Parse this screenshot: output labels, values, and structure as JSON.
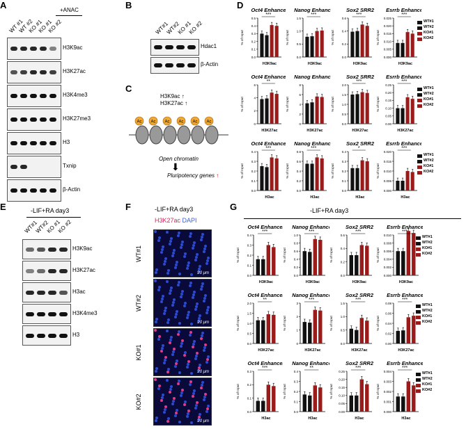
{
  "panels": {
    "A": {
      "label": "A",
      "anac": "+ANAC",
      "lanes": [
        "WT #1",
        "WT #2",
        "KO #1",
        "KO #1",
        "KO #2"
      ],
      "bands": [
        "H3K9ac",
        "H3K27ac",
        "H3K4me3",
        "H3K27me3",
        "H3",
        "Txnip",
        "β-Actin"
      ]
    },
    "B": {
      "label": "B",
      "lanes": [
        "WT#1",
        "WT#2",
        "KO #1",
        "KO #2"
      ],
      "bands": [
        "Hdac1",
        "β-Actin"
      ]
    },
    "C": {
      "label": "C",
      "mark1": "H3K9ac",
      "mark2": "H3K27ac",
      "open": "Open chromatin",
      "pluri": "Pluripotency genes",
      "ac": "Ac"
    },
    "D": {
      "label": "D"
    },
    "E": {
      "label": "E",
      "title": "-LIF+RA day3",
      "lanes": [
        "WT#1",
        "WT#2",
        "KO #1",
        "KO #2"
      ],
      "bands": [
        "H3K9ac",
        "H3K27ac",
        "H3ac",
        "H3K4me3",
        "H3"
      ]
    },
    "F": {
      "label": "F",
      "title": "-LIF+RA day3",
      "stain1": "H3K27ac",
      "stain2": "DAPI",
      "rows": [
        "WT#1",
        "WT#2",
        "KO#1",
        "KO#2"
      ],
      "scale": "20 μm"
    },
    "G": {
      "label": "G",
      "title": "-LIF+RA day3"
    }
  },
  "legend_D": [
    "WT#1",
    "WT#2",
    "KO#1",
    "KO#2"
  ],
  "legend_G": [
    "WT#1",
    "WT#2",
    "KO#1",
    "KO#2"
  ],
  "colors": {
    "black": "#111111",
    "red": "#9b1b1b"
  },
  "chart_data": [
    {
      "panel": "D",
      "type": "bar",
      "title": "Oct4 Enhancer",
      "xlabel": "H3K9ac",
      "ylabel": "% of Input",
      "categories": [
        "WT#1",
        "WT#2",
        "KO#1",
        "KO#2"
      ],
      "values": [
        0.3,
        0.28,
        0.41,
        0.4
      ],
      "ylim": [
        0,
        0.5
      ],
      "yticks": [
        "0.0",
        "0.1",
        "0.2",
        "0.3",
        "0.4",
        "0.5"
      ],
      "sig": "***"
    },
    {
      "panel": "D",
      "type": "bar",
      "title": "Nanog Enhancer",
      "xlabel": "H3K9ac",
      "ylabel": "% of Input",
      "categories": [
        "WT#1",
        "WT#2",
        "KO#1",
        "KO#2"
      ],
      "values": [
        0.78,
        0.8,
        1.0,
        1.02
      ],
      "ylim": [
        0,
        1.5
      ],
      "yticks": [
        "0.0",
        "0.5",
        "1.0",
        "1.5"
      ],
      "sig": "***"
    },
    {
      "panel": "D",
      "type": "bar",
      "title": "Sox2 SRR2",
      "xlabel": "H3K9ac",
      "ylabel": "% of Input",
      "categories": [
        "WT#1",
        "WT#2",
        "KO#1",
        "KO#2"
      ],
      "values": [
        0.39,
        0.4,
        0.5,
        0.48
      ],
      "ylim": [
        0,
        0.6
      ],
      "yticks": [
        "0.0",
        "0.2",
        "0.4",
        "0.6"
      ],
      "sig": "***"
    },
    {
      "panel": "D",
      "type": "bar",
      "title": "Esrrb Enhancer",
      "xlabel": "H3K9ac",
      "ylabel": "% of Input",
      "categories": [
        "WT#1",
        "WT#2",
        "KO#1",
        "KO#2"
      ],
      "values": [
        0.009,
        0.009,
        0.016,
        0.015
      ],
      "ylim": [
        0,
        0.025
      ],
      "yticks": [
        "0.000",
        "0.005",
        "0.010",
        "0.015",
        "0.020",
        "0.025"
      ],
      "sig": "***"
    },
    {
      "panel": "D",
      "type": "bar",
      "title": "Oct4 Enhancer",
      "xlabel": "H3K27ac",
      "ylabel": "% of Input",
      "categories": [
        "WT#1",
        "WT#2",
        "KO#1",
        "KO#2"
      ],
      "values": [
        3.8,
        3.9,
        4.8,
        4.6
      ],
      "ylim": [
        0,
        6
      ],
      "yticks": [
        "0",
        "2",
        "4",
        "6"
      ],
      "sig": "**"
    },
    {
      "panel": "D",
      "type": "bar",
      "title": "Nanog Enhancer",
      "xlabel": "H3K27ac",
      "ylabel": "% of Input",
      "categories": [
        "WT#1",
        "WT#2",
        "KO#1",
        "KO#2"
      ],
      "values": [
        4.2,
        4.4,
        5.6,
        5.5
      ],
      "ylim": [
        0,
        8
      ],
      "yticks": [
        "0",
        "2",
        "4",
        "6",
        "8"
      ],
      "sig": ""
    },
    {
      "panel": "D",
      "type": "bar",
      "title": "Sox2 SRR2",
      "xlabel": "H3K27ac",
      "ylabel": "% of Input",
      "categories": [
        "WT#1",
        "WT#2",
        "KO#1",
        "KO#2"
      ],
      "values": [
        1.5,
        1.52,
        1.62,
        1.58
      ],
      "ylim": [
        0,
        2
      ],
      "yticks": [
        "0.0",
        "0.5",
        "1.0",
        "1.5",
        "2.0"
      ],
      "sig": "***"
    },
    {
      "panel": "D",
      "type": "bar",
      "title": "Esrrb Enhancer",
      "xlabel": "H3K27ac",
      "ylabel": "% of Input",
      "categories": [
        "WT#1",
        "WT#2",
        "KO#1",
        "KO#2"
      ],
      "values": [
        0.1,
        0.1,
        0.17,
        0.16
      ],
      "ylim": [
        0,
        0.25
      ],
      "yticks": [
        "0.00",
        "0.05",
        "0.10",
        "0.15",
        "0.20",
        "0.25"
      ],
      "sig": "***"
    },
    {
      "panel": "D",
      "type": "bar",
      "title": "Oct4 Enhancer",
      "xlabel": "H3ac",
      "ylabel": "% of Input",
      "categories": [
        "WT#1",
        "WT#2",
        "KO#1",
        "KO#2"
      ],
      "values": [
        0.25,
        0.24,
        0.34,
        0.33
      ],
      "ylim": [
        0,
        0.4
      ],
      "yticks": [
        "0.0",
        "0.1",
        "0.2",
        "0.3",
        "0.4"
      ],
      "sig": "***"
    },
    {
      "panel": "D",
      "type": "bar",
      "title": "Nanog Enhancer",
      "xlabel": "H3ac",
      "ylabel": "% of Input",
      "categories": [
        "WT#1",
        "WT#2",
        "KO#1",
        "KO#2"
      ],
      "values": [
        0.55,
        0.55,
        0.68,
        0.66
      ],
      "ylim": [
        0,
        0.8
      ],
      "yticks": [
        "0.0",
        "0.2",
        "0.4",
        "0.6",
        "0.8"
      ],
      "sig": "***"
    },
    {
      "panel": "D",
      "type": "bar",
      "title": "Sox2 SRR2",
      "xlabel": "H3ac",
      "ylabel": "% of Input",
      "categories": [
        "WT#1",
        "WT#2",
        "KO#1",
        "KO#2"
      ],
      "values": [
        0.23,
        0.23,
        0.31,
        0.3
      ],
      "ylim": [
        0,
        0.4
      ],
      "yticks": [
        "0.0",
        "0.1",
        "0.2",
        "0.3",
        "0.4"
      ],
      "sig": "*"
    },
    {
      "panel": "D",
      "type": "bar",
      "title": "Esrrb Enhancer",
      "xlabel": "H3ac",
      "ylabel": "% of Input",
      "categories": [
        "WT#1",
        "WT#2",
        "KO#1",
        "KO#2"
      ],
      "values": [
        0.005,
        0.005,
        0.01,
        0.0095
      ],
      "ylim": [
        0,
        0.02
      ],
      "yticks": [
        "0.000",
        "0.005",
        "0.010",
        "0.015",
        "0.020"
      ],
      "sig": "***"
    },
    {
      "panel": "G",
      "type": "bar",
      "title": "Oct4 Enhancer",
      "xlabel": "H3K9ac",
      "ylabel": "% of Input",
      "categories": [
        "WT#1",
        "WT#2",
        "KO#1",
        "KO#2"
      ],
      "values": [
        0.16,
        0.16,
        0.3,
        0.28
      ],
      "ylim": [
        0,
        0.4
      ],
      "yticks": [
        "0.0",
        "0.1",
        "0.2",
        "0.3",
        "0.4"
      ],
      "sig": "***"
    },
    {
      "panel": "G",
      "type": "bar",
      "title": "Nanog Enhancer",
      "xlabel": "H3K9ac",
      "ylabel": "% of Input",
      "categories": [
        "WT#1",
        "WT#2",
        "KO#1",
        "KO#2"
      ],
      "values": [
        0.6,
        0.58,
        0.9,
        0.88
      ],
      "ylim": [
        0,
        1.0
      ],
      "yticks": [
        "0.0",
        "0.2",
        "0.4",
        "0.6",
        "0.8",
        "1.0"
      ],
      "sig": "***"
    },
    {
      "panel": "G",
      "type": "bar",
      "title": "Sox2 SRR2",
      "xlabel": "H3K9ac",
      "ylabel": "% of Input",
      "categories": [
        "WT#1",
        "WT#2",
        "KO#1",
        "KO#2"
      ],
      "values": [
        0.3,
        0.3,
        0.45,
        0.44
      ],
      "ylim": [
        0,
        0.6
      ],
      "yticks": [
        "0.0",
        "0.2",
        "0.4",
        "0.6"
      ],
      "sig": "***"
    },
    {
      "panel": "G",
      "type": "bar",
      "title": "Esrrb Enhancer",
      "xlabel": "H3K9ac",
      "ylabel": "% of Input",
      "categories": [
        "WT#1",
        "WT#2",
        "KO#1",
        "KO#2"
      ],
      "values": [
        0.006,
        0.006,
        0.011,
        0.0105
      ],
      "ylim": [
        0,
        0.01
      ],
      "yticks": [
        "0.000",
        "0.002",
        "0.004",
        "0.006",
        "0.008",
        "0.010"
      ],
      "sig": "***"
    },
    {
      "panel": "G",
      "type": "bar",
      "title": "Oct4 Enhancer",
      "xlabel": "H3K27ac",
      "ylabel": "% of Input",
      "categories": [
        "WT#1",
        "WT#2",
        "KO#1",
        "KO#2"
      ],
      "values": [
        1.15,
        1.15,
        1.45,
        1.42
      ],
      "ylim": [
        0,
        2.0
      ],
      "yticks": [
        "0.0",
        "0.5",
        "1.0",
        "1.5",
        "2.0"
      ],
      "sig": "**"
    },
    {
      "panel": "G",
      "type": "bar",
      "title": "Nanog Enhancer",
      "xlabel": "H3K27ac",
      "ylabel": "% of Input",
      "categories": [
        "WT#1",
        "WT#2",
        "KO#1",
        "KO#2"
      ],
      "values": [
        1.6,
        1.55,
        2.5,
        2.45
      ],
      "ylim": [
        0,
        3
      ],
      "yticks": [
        "0",
        "1",
        "2",
        "3"
      ],
      "sig": "***"
    },
    {
      "panel": "G",
      "type": "bar",
      "title": "Sox2 SRR2",
      "xlabel": "H3K27ac",
      "ylabel": "% of Input",
      "categories": [
        "WT#1",
        "WT#2",
        "KO#1",
        "KO#2"
      ],
      "values": [
        0.55,
        0.5,
        0.95,
        0.85
      ],
      "ylim": [
        0,
        1.5
      ],
      "yticks": [
        "0.0",
        "0.5",
        "1.0",
        "1.5"
      ],
      "sig": "***"
    },
    {
      "panel": "G",
      "type": "bar",
      "title": "Esrrb Enhancer",
      "xlabel": "H3K27ac",
      "ylabel": "% of Input",
      "categories": [
        "WT#1",
        "WT#2",
        "KO#1",
        "KO#2"
      ],
      "values": [
        0.025,
        0.026,
        0.052,
        0.055
      ],
      "ylim": [
        0,
        0.08
      ],
      "yticks": [
        "0.00",
        "0.02",
        "0.04",
        "0.06",
        "0.08"
      ],
      "sig": "***"
    },
    {
      "panel": "G",
      "type": "bar",
      "title": "Oct4 Enhancer",
      "xlabel": "H3ac",
      "ylabel": "% of Input",
      "categories": [
        "WT#1",
        "WT#2",
        "KO#1",
        "KO#2"
      ],
      "values": [
        0.08,
        0.08,
        0.2,
        0.19
      ],
      "ylim": [
        0,
        0.3
      ],
      "yticks": [
        "0.0",
        "0.1",
        "0.2",
        "0.3"
      ],
      "sig": "***"
    },
    {
      "panel": "G",
      "type": "bar",
      "title": "Nanog Enhancer",
      "xlabel": "H3ac",
      "ylabel": "% of Input",
      "categories": [
        "WT#1",
        "WT#2",
        "KO#1",
        "KO#2"
      ],
      "values": [
        0.17,
        0.16,
        0.26,
        0.24
      ],
      "ylim": [
        0,
        0.4
      ],
      "yticks": [
        "0.0",
        "0.1",
        "0.2",
        "0.3",
        "0.4"
      ],
      "sig": "**"
    },
    {
      "panel": "G",
      "type": "bar",
      "title": "Sox2 SRR2",
      "xlabel": "H3ac",
      "ylabel": "% of Input",
      "categories": [
        "WT#1",
        "WT#2",
        "KO#1",
        "KO#2"
      ],
      "values": [
        0.1,
        0.1,
        0.2,
        0.17
      ],
      "ylim": [
        0,
        0.25
      ],
      "yticks": [
        "0.00",
        "0.05",
        "0.10",
        "0.15",
        "0.20",
        "0.25"
      ],
      "sig": "***"
    },
    {
      "panel": "G",
      "type": "bar",
      "title": "Esrrb Enhancer",
      "xlabel": "H3ac",
      "ylabel": "% of Input",
      "categories": [
        "WT#1",
        "WT#2",
        "KO#1",
        "KO#2"
      ],
      "values": [
        0.0015,
        0.0015,
        0.003,
        0.0026
      ],
      "ylim": [
        0,
        0.004
      ],
      "yticks": [
        "0.000",
        "0.001",
        "0.002",
        "0.003",
        "0.004"
      ],
      "sig": "***"
    }
  ]
}
